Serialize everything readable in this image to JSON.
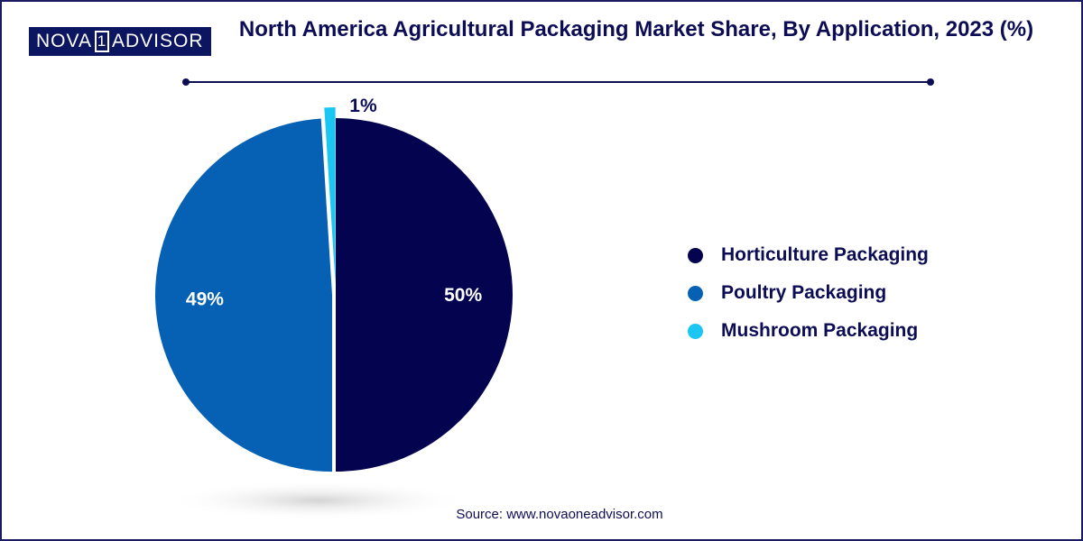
{
  "brand": {
    "part1": "NOVA",
    "part2": "1",
    "part3": "ADVISOR"
  },
  "chart_data": {
    "type": "pie",
    "title": "North America Agricultural Packaging Market Share, By Application, 2023 (%)",
    "unit": "%",
    "legend_position": "right",
    "slices": [
      {
        "label": "Horticulture Packaging",
        "value": 50,
        "value_label": "50%",
        "color": "#03034f"
      },
      {
        "label": "Poultry Packaging",
        "value": 49,
        "value_label": "49%",
        "color": "#0661b5"
      },
      {
        "label": "Mushroom Packaging",
        "value": 1,
        "value_label": "1%",
        "color": "#1bc6f3"
      }
    ]
  },
  "source": "Source: www.novaoneadvisor.com"
}
